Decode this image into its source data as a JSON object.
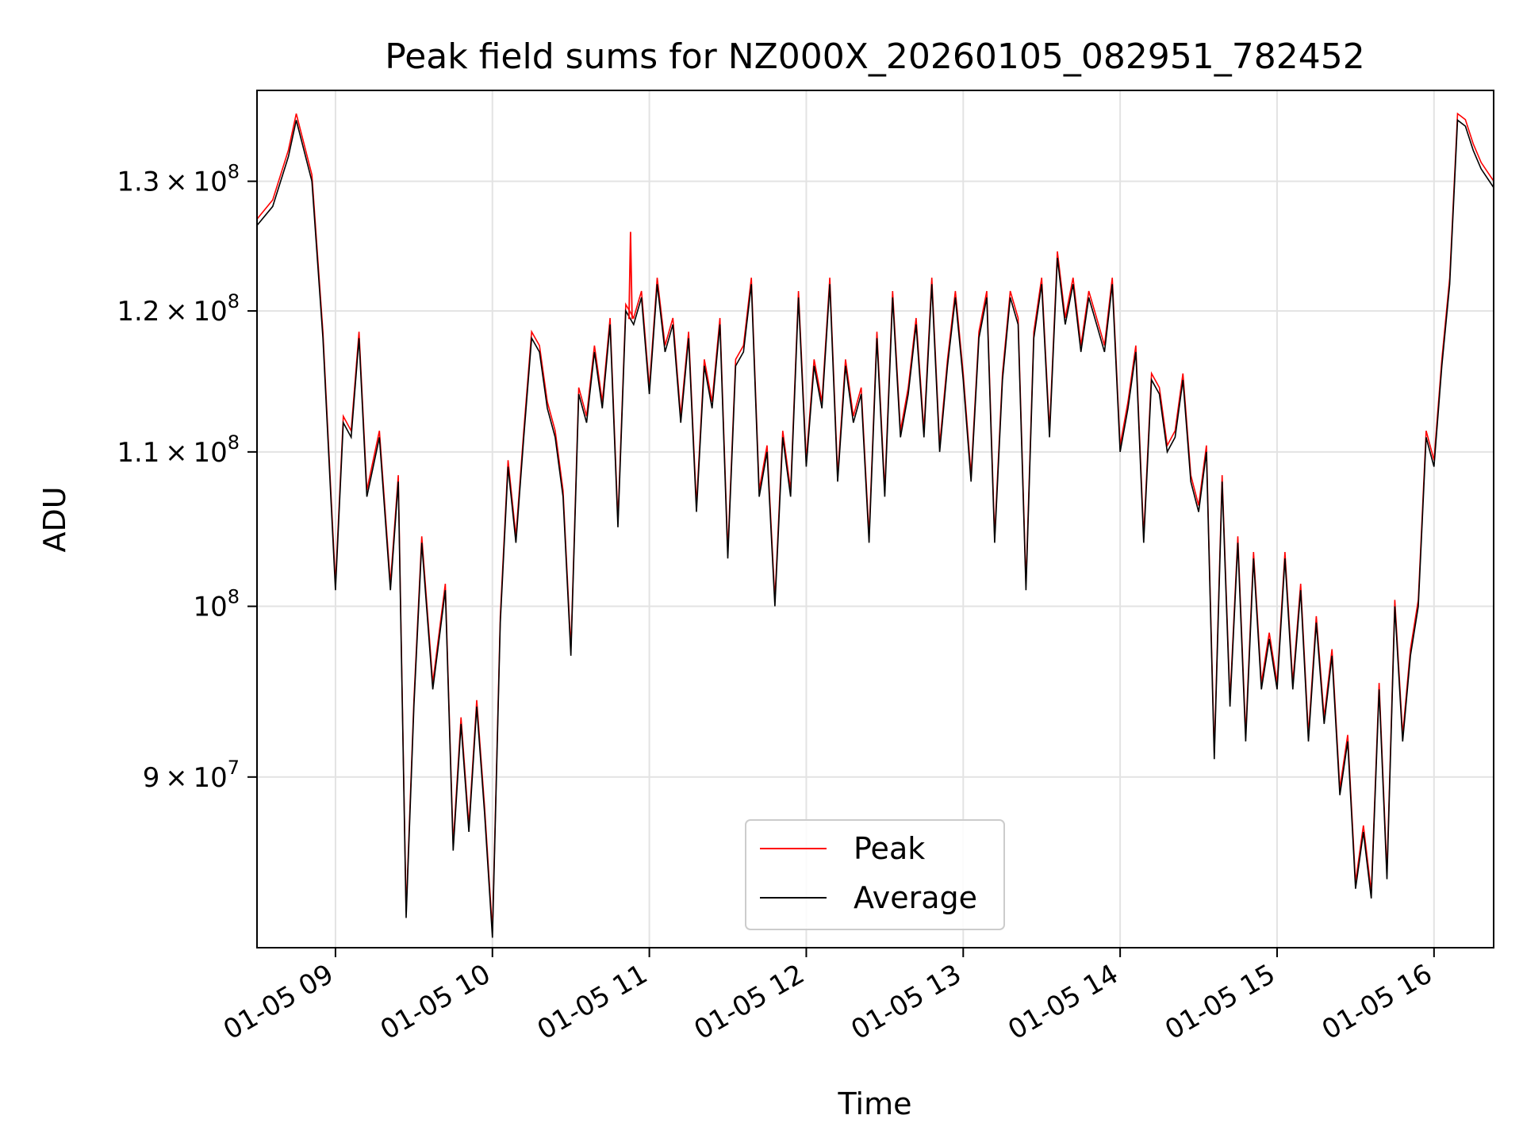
{
  "chart_data": {
    "type": "line",
    "title": "Peak field sums for NZ000X_20260105_082951_782452",
    "xlabel": "Time",
    "ylabel": "ADU",
    "yscale": "log",
    "xlim": [
      8.5,
      16.38
    ],
    "ylim": [
      81000000,
      137500000
    ],
    "grid": true,
    "legend_position": "lower center",
    "x_ticks": [
      {
        "value": 9,
        "label": "01-05 09"
      },
      {
        "value": 10,
        "label": "01-05 10"
      },
      {
        "value": 11,
        "label": "01-05 11"
      },
      {
        "value": 12,
        "label": "01-05 12"
      },
      {
        "value": 13,
        "label": "01-05 13"
      },
      {
        "value": 14,
        "label": "01-05 14"
      },
      {
        "value": 15,
        "label": "01-05 15"
      },
      {
        "value": 16,
        "label": "01-05 16"
      }
    ],
    "y_ticks": [
      {
        "value": 90000000,
        "mant": "9",
        "exp": "7"
      },
      {
        "value": 100000000,
        "mant": "",
        "exp": "8"
      },
      {
        "value": 110000000,
        "mant": "1.1",
        "exp": "8"
      },
      {
        "value": 120000000,
        "mant": "1.2",
        "exp": "8"
      },
      {
        "value": 130000000,
        "mant": "1.3",
        "exp": "8"
      }
    ],
    "series": [
      {
        "name": "Peak",
        "color": "#ff0000"
      },
      {
        "name": "Average",
        "color": "#000000"
      }
    ],
    "x": [
      8.5,
      8.6,
      8.7,
      8.75,
      8.85,
      8.92,
      9.0,
      9.05,
      9.1,
      9.15,
      9.2,
      9.28,
      9.35,
      9.4,
      9.45,
      9.5,
      9.55,
      9.62,
      9.7,
      9.75,
      9.8,
      9.85,
      9.9,
      9.95,
      10.0,
      10.05,
      10.1,
      10.15,
      10.2,
      10.25,
      10.3,
      10.35,
      10.4,
      10.45,
      10.5,
      10.55,
      10.6,
      10.65,
      10.7,
      10.75,
      10.8,
      10.85,
      10.9,
      10.95,
      11.0,
      11.05,
      11.1,
      11.15,
      11.2,
      11.25,
      11.3,
      11.35,
      11.4,
      11.45,
      11.5,
      11.55,
      11.6,
      11.65,
      11.7,
      11.75,
      11.8,
      11.85,
      11.9,
      11.95,
      12.0,
      12.05,
      12.1,
      12.15,
      12.2,
      12.25,
      12.3,
      12.35,
      12.4,
      12.45,
      12.5,
      12.55,
      12.6,
      12.65,
      12.7,
      12.75,
      12.8,
      12.85,
      12.9,
      12.95,
      13.0,
      13.05,
      13.1,
      13.15,
      13.2,
      13.25,
      13.3,
      13.35,
      13.4,
      13.45,
      13.5,
      13.55,
      13.6,
      13.65,
      13.7,
      13.75,
      13.8,
      13.85,
      13.9,
      13.95,
      14.0,
      14.05,
      14.1,
      14.15,
      14.2,
      14.25,
      14.3,
      14.35,
      14.4,
      14.45,
      14.5,
      14.55,
      14.6,
      14.65,
      14.7,
      14.75,
      14.8,
      14.85,
      14.9,
      14.95,
      15.0,
      15.05,
      15.1,
      15.15,
      15.2,
      15.25,
      15.3,
      15.35,
      15.4,
      15.45,
      15.5,
      15.55,
      15.6,
      15.65,
      15.7,
      15.75,
      15.8,
      15.85,
      15.9,
      15.95,
      16.0,
      16.05,
      16.1,
      16.15,
      16.2,
      16.25,
      16.3,
      16.38
    ],
    "average": [
      126500000,
      128000000,
      132000000,
      135000000,
      130000000,
      118000000,
      101000000,
      112000000,
      111000000,
      118000000,
      107000000,
      111000000,
      101000000,
      108000000,
      82500000,
      94000000,
      104000000,
      95000000,
      101000000,
      86000000,
      93000000,
      87000000,
      94000000,
      88000000,
      81500000,
      99000000,
      109000000,
      104000000,
      111000000,
      118000000,
      117000000,
      113000000,
      111000000,
      107000000,
      97000000,
      114000000,
      112000000,
      117000000,
      113000000,
      119000000,
      105000000,
      120000000,
      119000000,
      121000000,
      114000000,
      122000000,
      117000000,
      119000000,
      112000000,
      118000000,
      106000000,
      116000000,
      113000000,
      119000000,
      103000000,
      116000000,
      117000000,
      122000000,
      107000000,
      110000000,
      100000000,
      111000000,
      107000000,
      121000000,
      109000000,
      116000000,
      113000000,
      122000000,
      108000000,
      116000000,
      112000000,
      114000000,
      104000000,
      118000000,
      107000000,
      121000000,
      111000000,
      114000000,
      119000000,
      111000000,
      122000000,
      110000000,
      116000000,
      121000000,
      115000000,
      108000000,
      118000000,
      121000000,
      104000000,
      115000000,
      121000000,
      119000000,
      101000000,
      118000000,
      122000000,
      111000000,
      124000000,
      119000000,
      122000000,
      117000000,
      121000000,
      119000000,
      117000000,
      122000000,
      110000000,
      113000000,
      117000000,
      104000000,
      115000000,
      114000000,
      110000000,
      111000000,
      115000000,
      108000000,
      106000000,
      110000000,
      91000000,
      108000000,
      94000000,
      104000000,
      92000000,
      103000000,
      95000000,
      98000000,
      95000000,
      103000000,
      95000000,
      101000000,
      92000000,
      99000000,
      93000000,
      97000000,
      89000000,
      92000000,
      84000000,
      87000000,
      83500000,
      95000000,
      84500000,
      100000000,
      92000000,
      97000000,
      100000000,
      111000000,
      109000000,
      116000000,
      122000000,
      135000000,
      134500000,
      132500000,
      131000000,
      129500000
    ],
    "peak_spike": {
      "x": 10.88,
      "value": 126000000
    }
  }
}
